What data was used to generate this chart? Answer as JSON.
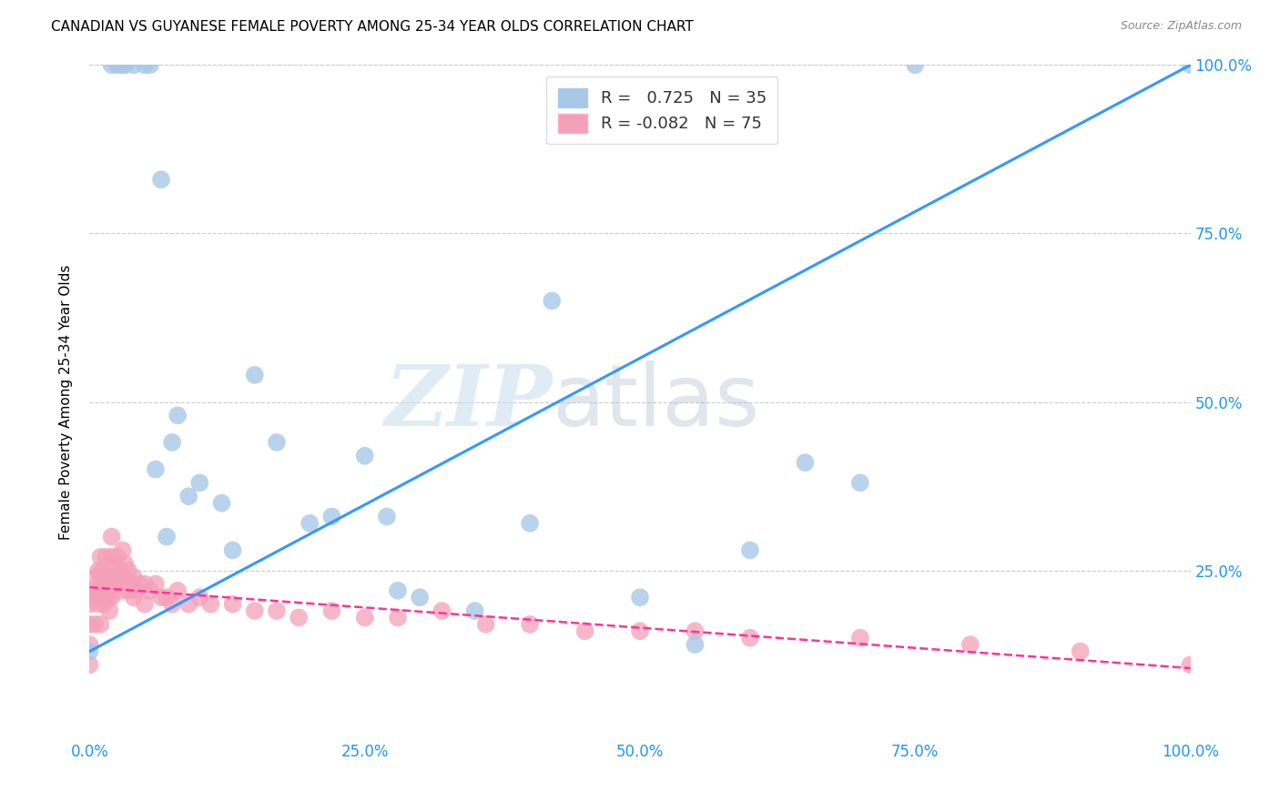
{
  "title": "CANADIAN VS GUYANESE FEMALE POVERTY AMONG 25-34 YEAR OLDS CORRELATION CHART",
  "source": "Source: ZipAtlas.com",
  "ylabel": "Female Poverty Among 25-34 Year Olds",
  "xlim": [
    0,
    1
  ],
  "ylim": [
    0,
    1
  ],
  "xticks": [
    0,
    0.25,
    0.5,
    0.75,
    1.0
  ],
  "yticks": [
    0.25,
    0.5,
    0.75,
    1.0
  ],
  "xticklabels": [
    "0.0%",
    "25.0%",
    "50.0%",
    "75.0%",
    "100.0%"
  ],
  "yticklabels": [
    "25.0%",
    "50.0%",
    "75.0%",
    "100.0%"
  ],
  "canadian_R": 0.725,
  "canadian_N": 35,
  "guyanese_R": -0.082,
  "guyanese_N": 75,
  "canadian_color": "#a8c8e8",
  "guyanese_color": "#f4a0b8",
  "trendline_canadian_color": "#3399FF",
  "trendline_guyanese_color": "#FF3399",
  "watermark_zip": "ZIP",
  "watermark_atlas": "atlas",
  "canadian_points_x": [
    0.0,
    0.02,
    0.025,
    0.03,
    0.032,
    0.04,
    0.05,
    0.055,
    0.06,
    0.065,
    0.07,
    0.075,
    0.08,
    0.09,
    0.1,
    0.12,
    0.13,
    0.15,
    0.17,
    0.2,
    0.22,
    0.25,
    0.27,
    0.28,
    0.3,
    0.35,
    0.4,
    0.42,
    0.5,
    0.55,
    0.6,
    0.65,
    0.7,
    0.75,
    1.0
  ],
  "canadian_points_y": [
    0.13,
    1.0,
    1.0,
    1.0,
    1.0,
    1.0,
    1.0,
    1.0,
    0.4,
    0.83,
    0.3,
    0.44,
    0.48,
    0.36,
    0.38,
    0.35,
    0.28,
    0.54,
    0.44,
    0.32,
    0.33,
    0.42,
    0.33,
    0.22,
    0.21,
    0.19,
    0.32,
    0.65,
    0.21,
    0.14,
    0.28,
    0.41,
    0.38,
    1.0,
    1.0
  ],
  "guyanese_points_x": [
    0.0,
    0.0,
    0.0,
    0.0,
    0.0,
    0.005,
    0.005,
    0.005,
    0.007,
    0.008,
    0.008,
    0.01,
    0.01,
    0.01,
    0.01,
    0.012,
    0.012,
    0.013,
    0.014,
    0.015,
    0.015,
    0.015,
    0.016,
    0.017,
    0.018,
    0.02,
    0.02,
    0.02,
    0.02,
    0.022,
    0.023,
    0.025,
    0.025,
    0.027,
    0.028,
    0.03,
    0.03,
    0.032,
    0.033,
    0.035,
    0.035,
    0.037,
    0.04,
    0.04,
    0.042,
    0.045,
    0.05,
    0.05,
    0.055,
    0.06,
    0.065,
    0.07,
    0.075,
    0.08,
    0.09,
    0.1,
    0.11,
    0.13,
    0.15,
    0.17,
    0.19,
    0.22,
    0.25,
    0.28,
    0.32,
    0.36,
    0.4,
    0.45,
    0.5,
    0.55,
    0.6,
    0.7,
    0.8,
    0.9,
    1.0
  ],
  "guyanese_points_y": [
    0.22,
    0.2,
    0.17,
    0.14,
    0.11,
    0.24,
    0.21,
    0.17,
    0.22,
    0.25,
    0.2,
    0.27,
    0.24,
    0.21,
    0.17,
    0.25,
    0.22,
    0.2,
    0.23,
    0.27,
    0.24,
    0.21,
    0.23,
    0.21,
    0.19,
    0.3,
    0.27,
    0.24,
    0.21,
    0.26,
    0.23,
    0.27,
    0.24,
    0.25,
    0.22,
    0.28,
    0.24,
    0.26,
    0.23,
    0.25,
    0.22,
    0.23,
    0.24,
    0.21,
    0.22,
    0.23,
    0.23,
    0.2,
    0.22,
    0.23,
    0.21,
    0.21,
    0.2,
    0.22,
    0.2,
    0.21,
    0.2,
    0.2,
    0.19,
    0.19,
    0.18,
    0.19,
    0.18,
    0.18,
    0.19,
    0.17,
    0.17,
    0.16,
    0.16,
    0.16,
    0.15,
    0.15,
    0.14,
    0.13,
    0.11
  ],
  "canadian_trend_x0": 0.0,
  "canadian_trend_y0": 0.13,
  "canadian_trend_x1": 1.0,
  "canadian_trend_y1": 1.0,
  "guyanese_trend_x0": 0.0,
  "guyanese_trend_y0": 0.225,
  "guyanese_trend_x1": 1.0,
  "guyanese_trend_y1": 0.105
}
